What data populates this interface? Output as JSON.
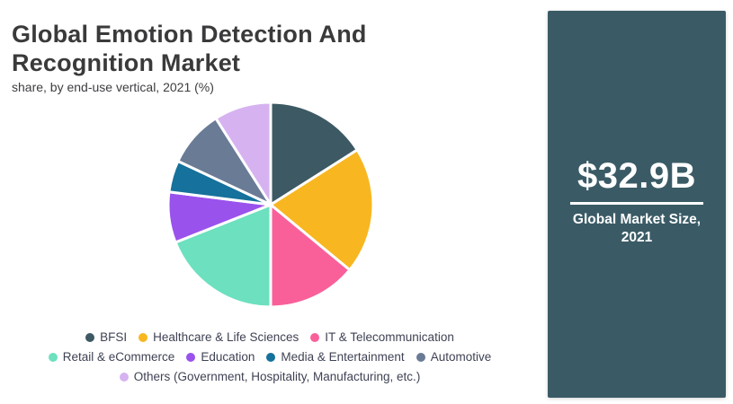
{
  "header": {
    "title_line1": "Global Emotion Detection And",
    "title_line2": "Recognition Market",
    "subtitle": "share, by end-use vertical, 2021 (%)"
  },
  "chart_data": {
    "type": "pie",
    "title": "Global Emotion Detection And Recognition Market",
    "subtitle": "share, by end-use vertical, 2021 (%)",
    "unit": "%",
    "categories": [
      "BFSI",
      "Healthcare & Life Sciences",
      "IT & Telecommunication",
      "Retail & eCommerce",
      "Education",
      "Media & Entertainment",
      "Automotive",
      "Others (Government, Hospitality, Manufacturing, etc.)"
    ],
    "values": [
      16,
      20,
      14,
      19,
      8,
      5,
      9,
      9
    ],
    "colors": [
      "#3c5964",
      "#f8b721",
      "#f9609a",
      "#6ce0bf",
      "#9a52ec",
      "#16719c",
      "#6a7b95",
      "#d6b3f0"
    ],
    "start_angle_deg": 0,
    "direction": "clockwise",
    "legend_position": "bottom",
    "legend_rows": [
      [
        0,
        1,
        2
      ],
      [
        3,
        4,
        5,
        6
      ],
      [
        7
      ]
    ]
  },
  "sidebar": {
    "value": "$32.9B",
    "caption_line1": "Global Market Size,",
    "caption_line2": "2021",
    "background": "#3a5b66"
  }
}
